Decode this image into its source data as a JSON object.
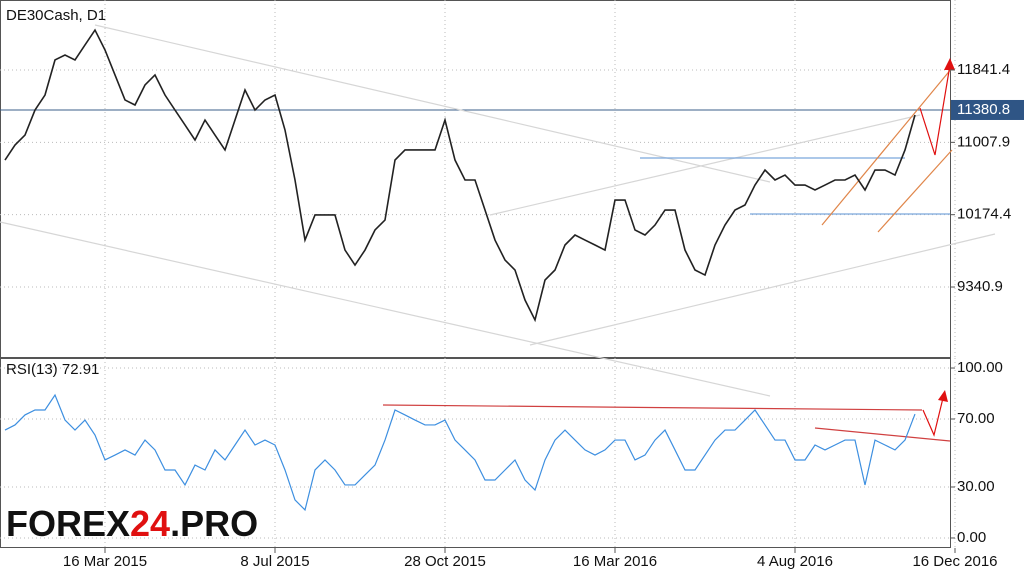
{
  "chart_data": [
    {
      "type": "line",
      "title": "DE30Cash, D1",
      "color": "#222222",
      "categories": [
        null,
        null,
        null,
        null,
        null,
        null,
        null,
        null,
        null,
        null,
        "16 Mar 2015",
        null,
        null,
        null,
        null,
        null,
        null,
        null,
        null,
        null,
        null,
        null,
        null,
        null,
        null,
        null,
        null,
        "8 Jul 2015",
        null,
        null,
        null,
        null,
        null,
        null,
        null,
        null,
        null,
        null,
        null,
        null,
        null,
        null,
        null,
        null,
        "28 Oct 2015",
        null,
        null,
        null,
        null,
        null,
        null,
        null,
        null,
        null,
        null,
        null,
        null,
        null,
        null,
        null,
        null,
        "16 Mar 2016",
        null,
        null,
        null,
        null,
        null,
        null,
        null,
        null,
        null,
        null,
        null,
        null,
        null,
        null,
        null,
        null,
        null,
        "4 Aug 2016",
        null,
        null,
        null,
        null,
        null,
        null,
        null,
        null,
        null,
        null,
        null,
        null,
        null,
        null,
        null,
        "16 Dec 2016"
      ],
      "values": [
        10804,
        10977,
        11092,
        11380,
        11553,
        11957,
        12014,
        11957,
        12130,
        12302,
        12072,
        11784,
        11496,
        11438,
        11669,
        11784,
        11553,
        11380,
        11208,
        11035,
        11265,
        11092,
        10920,
        11265,
        11611,
        11380,
        11496,
        11553,
        11150,
        10574,
        9882,
        10171,
        10171,
        10171,
        9767,
        9594,
        9767,
        9998,
        10113,
        10804,
        10920,
        10920,
        10920,
        10920,
        11265,
        10804,
        10574,
        10574,
        10228,
        9882,
        9652,
        9537,
        9191,
        8961,
        9421,
        9537,
        9825,
        9940,
        9882,
        9825,
        9767,
        10343,
        10343,
        9998,
        9940,
        10055,
        10228,
        10228,
        9767,
        9537,
        9479,
        9825,
        10055,
        10228,
        10286,
        10516,
        10689,
        10574,
        10631,
        10516,
        10516,
        10459,
        10516,
        10574,
        10574,
        10631,
        10459,
        10689,
        10689,
        10631,
        10920,
        11323,
        null,
        null,
        null,
        null
      ],
      "ylim": [
        8523,
        12648
      ],
      "yticks": [
        9340.9,
        10174.4,
        11007.9,
        11841.4
      ],
      "last_price": 11380.8,
      "grid": true
    },
    {
      "type": "line",
      "title": "RSI(13) 72.91",
      "color": "#3d8fe0",
      "values": [
        63.5,
        66.5,
        72.4,
        75.3,
        75.3,
        84.1,
        69.4,
        63.5,
        69.4,
        60.6,
        45.9,
        48.8,
        51.8,
        48.8,
        57.6,
        51.8,
        40.0,
        40.0,
        31.2,
        42.9,
        40.0,
        51.8,
        45.9,
        54.7,
        63.5,
        54.7,
        57.6,
        54.7,
        40.0,
        22.4,
        16.5,
        40.0,
        45.9,
        40.0,
        31.2,
        31.2,
        37.1,
        42.9,
        57.6,
        75.3,
        72.4,
        69.4,
        66.5,
        66.5,
        69.4,
        57.6,
        51.8,
        45.9,
        34.1,
        34.1,
        40.0,
        45.9,
        34.1,
        28.2,
        45.9,
        57.6,
        63.5,
        57.6,
        51.8,
        48.8,
        51.8,
        57.6,
        57.6,
        45.9,
        48.8,
        57.6,
        63.5,
        51.8,
        40.0,
        40.0,
        48.8,
        57.6,
        63.5,
        63.5,
        69.4,
        75.3,
        66.5,
        57.6,
        57.6,
        45.9,
        45.9,
        54.7,
        51.8,
        54.7,
        57.6,
        57.6,
        31.2,
        57.6,
        54.7,
        51.8,
        57.6,
        72.9,
        null,
        null,
        null,
        null
      ],
      "ylim": [
        -5.9,
        105.9
      ],
      "yticks": [
        {
          "value": 0,
          "label": "0.00"
        },
        {
          "value": 30,
          "label": "30.00"
        },
        {
          "value": 70,
          "label": "70.00"
        },
        {
          "value": 100,
          "label": "100.00"
        }
      ],
      "grid": true
    }
  ],
  "watermark": [
    "FOREX",
    "24",
    ".PRO"
  ]
}
